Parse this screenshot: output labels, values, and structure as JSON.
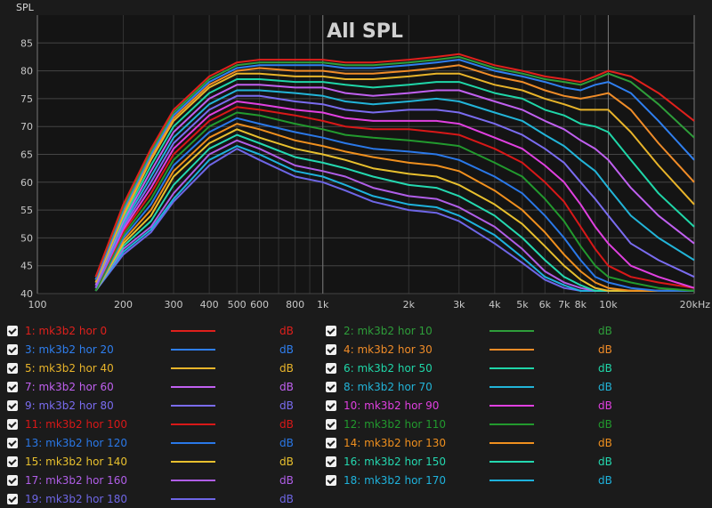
{
  "chart_data": {
    "type": "line",
    "title": "All SPL",
    "ylabel": "SPL",
    "x_unit_label": "20kHz",
    "xscale": "log",
    "xlim": [
      100,
      20000
    ],
    "ylim": [
      40,
      90
    ],
    "yticks": [
      40,
      45,
      50,
      55,
      60,
      65,
      70,
      75,
      80,
      85
    ],
    "xticks": [
      {
        "v": 100,
        "label": "100"
      },
      {
        "v": 200,
        "label": "200"
      },
      {
        "v": 300,
        "label": "300"
      },
      {
        "v": 400,
        "label": "400"
      },
      {
        "v": 500,
        "label": "500"
      },
      {
        "v": 600,
        "label": "600"
      },
      {
        "v": 800,
        "label": "800"
      },
      {
        "v": 1000,
        "label": "1k"
      },
      {
        "v": 2000,
        "label": "2k"
      },
      {
        "v": 3000,
        "label": "3k"
      },
      {
        "v": 4000,
        "label": "4k"
      },
      {
        "v": 5000,
        "label": "5k"
      },
      {
        "v": 6000,
        "label": "6k"
      },
      {
        "v": 7000,
        "label": "7k"
      },
      {
        "v": 8000,
        "label": "8k"
      },
      {
        "v": 10000,
        "label": "10k"
      },
      {
        "v": 20000,
        "label": "20kHz"
      }
    ],
    "grid": true,
    "x": [
      160,
      200,
      250,
      300,
      400,
      500,
      600,
      800,
      1000,
      1200,
      1500,
      2000,
      2500,
      3000,
      4000,
      5000,
      6000,
      7000,
      8000,
      9000,
      10000,
      12000,
      15000,
      20000
    ],
    "series": [
      {
        "name": "1: mk3b2 hor 0",
        "color": "#e0201c",
        "values": [
          43,
          56,
          66,
          73,
          79,
          81.5,
          82,
          82,
          82,
          81.5,
          81.5,
          82,
          82.5,
          83,
          81,
          80,
          79,
          78.5,
          78,
          79,
          80,
          79,
          76,
          71
        ]
      },
      {
        "name": "2: mk3b2 hor 10",
        "color": "#2e9e3a",
        "values": [
          43,
          55.5,
          65.5,
          72.5,
          78.5,
          81,
          81.5,
          81.5,
          81.5,
          81,
          81,
          81.5,
          82,
          82.5,
          80.5,
          79.5,
          78.5,
          78,
          77.5,
          78.5,
          79.5,
          78,
          74,
          68
        ]
      },
      {
        "name": "3: mk3b2 hor 20",
        "color": "#2f7ff0",
        "values": [
          42.5,
          55,
          65,
          72,
          78,
          80.5,
          81,
          81,
          81,
          80.5,
          80.5,
          81,
          81.5,
          82,
          80,
          79,
          78,
          77,
          76.5,
          77.5,
          78,
          76,
          71,
          64
        ]
      },
      {
        "name": "4: mk3b2 hor 30",
        "color": "#f08c28",
        "values": [
          42.5,
          54.5,
          64.5,
          71.5,
          77.5,
          80,
          80.5,
          80,
          80,
          79.5,
          79.5,
          80,
          80.5,
          81,
          79,
          78,
          76.5,
          75.5,
          75,
          75.5,
          76,
          73,
          67,
          60
        ]
      },
      {
        "name": "5: mk3b2 hor 40",
        "color": "#e8b42a",
        "values": [
          42,
          54,
          64,
          71,
          77,
          79.5,
          79.5,
          79,
          79,
          78.5,
          78.5,
          79,
          79.5,
          79.5,
          77.5,
          76.5,
          75,
          74,
          73,
          73,
          73,
          69,
          63,
          56
        ]
      },
      {
        "name": "6: mk3b2 hor 50",
        "color": "#1fd6a8",
        "values": [
          42,
          53.5,
          63,
          70,
          76,
          78.5,
          78.5,
          78,
          78,
          77.5,
          77,
          77.5,
          78,
          78,
          76,
          75,
          73,
          72,
          70.5,
          70,
          69,
          64,
          58,
          52
        ]
      },
      {
        "name": "7: mk3b2 hor 60",
        "color": "#c060f0",
        "values": [
          41.5,
          53,
          62,
          69,
          75,
          77.5,
          77.5,
          77,
          77,
          76,
          75.5,
          76,
          76.5,
          76.5,
          74.5,
          73,
          71,
          69.5,
          67.5,
          66,
          64,
          59,
          54,
          49
        ]
      },
      {
        "name": "8: mk3b2 hor 70",
        "color": "#22b4d8",
        "values": [
          41.5,
          52.5,
          61,
          68,
          74,
          76.5,
          76.5,
          76,
          75.5,
          74.5,
          74,
          74.5,
          75,
          74.5,
          72.5,
          71,
          68.5,
          66.5,
          64,
          62,
          59,
          54,
          50,
          46
        ]
      },
      {
        "name": "9: mk3b2 hor 80",
        "color": "#7a6cf0",
        "values": [
          41,
          52,
          60,
          67,
          73,
          75.5,
          75.5,
          74.5,
          74,
          73,
          72.5,
          73,
          73,
          72.5,
          70.5,
          68.5,
          66,
          63.5,
          60,
          57,
          54,
          49,
          46,
          43
        ]
      },
      {
        "name": "10: mk3b2 hor 90",
        "color": "#e040e0",
        "values": [
          41,
          51.5,
          59,
          66,
          72,
          74.5,
          74,
          73,
          72.5,
          71.5,
          71,
          71,
          71,
          70.5,
          68,
          66,
          63,
          60,
          56,
          52,
          49,
          45,
          43,
          41
        ]
      },
      {
        "name": "11: mk3b2 hor 100",
        "color": "#d81818",
        "values": [
          41,
          51,
          58,
          65,
          71,
          73.5,
          73,
          72,
          71,
          70,
          69.5,
          69.5,
          69,
          68.5,
          66,
          63.5,
          60,
          56.5,
          52,
          48,
          45,
          43,
          42,
          41
        ]
      },
      {
        "name": "12: mk3b2 hor 110",
        "color": "#229a2e",
        "values": [
          40.5,
          50.5,
          57,
          64,
          70,
          72.5,
          72,
          70.5,
          69.5,
          68.5,
          68,
          67.5,
          67,
          66.5,
          63.5,
          61,
          57,
          53,
          48.5,
          45,
          43,
          42,
          41,
          40.5
        ]
      },
      {
        "name": "13: mk3b2 hor 120",
        "color": "#2a78e8",
        "values": [
          40.5,
          50,
          56,
          63,
          69,
          71.5,
          70.5,
          69,
          68,
          67,
          66,
          65.5,
          65,
          64,
          61,
          58,
          54,
          50,
          46,
          43,
          42,
          41,
          40.5,
          40.5
        ]
      },
      {
        "name": "14: mk3b2 hor 130",
        "color": "#f0901e",
        "values": [
          40.5,
          49.5,
          55,
          62,
          68,
          70.5,
          69.5,
          67.5,
          66.5,
          65.5,
          64.5,
          63.5,
          63,
          62,
          58.5,
          55,
          51,
          47,
          44,
          42,
          41,
          40.5,
          40.5,
          40.5
        ]
      },
      {
        "name": "15: mk3b2 hor 140",
        "color": "#e8c02e",
        "values": [
          40.5,
          49,
          54,
          61,
          67,
          69.5,
          68,
          66,
          65,
          64,
          62.5,
          61.5,
          61,
          59.5,
          56,
          52.5,
          48.5,
          45,
          42.5,
          41,
          40.5,
          40.5,
          40.5,
          40.5
        ]
      },
      {
        "name": "16: mk3b2 hor 150",
        "color": "#24d8b0",
        "values": [
          40.5,
          48.5,
          53,
          59.5,
          66,
          68.5,
          67,
          64.5,
          63.5,
          62.5,
          61,
          59.5,
          59,
          57.5,
          54,
          50,
          46,
          43,
          41.5,
          40.5,
          40.5,
          40.5,
          40.5,
          40.5
        ]
      },
      {
        "name": "17: mk3b2 hor 160",
        "color": "#b05ee8",
        "values": [
          40.5,
          48,
          52,
          58,
          65,
          67.5,
          66,
          63,
          62,
          61,
          59,
          57.5,
          57,
          55.5,
          52,
          48,
          44,
          42,
          41,
          40.5,
          40.5,
          40.5,
          40.5,
          40.5
        ]
      },
      {
        "name": "18: mk3b2 hor 170",
        "color": "#1eb2dc",
        "values": [
          40.5,
          47.5,
          51.5,
          57,
          64,
          66.5,
          65,
          62,
          61,
          59.5,
          57.5,
          56,
          55.5,
          54,
          50.5,
          46.5,
          43,
          41.5,
          40.5,
          40.5,
          40.5,
          40.5,
          40.5,
          40.5
        ]
      },
      {
        "name": "19: mk3b2 hor 180",
        "color": "#6e66e6",
        "values": [
          40.5,
          47,
          51,
          56.5,
          63,
          66,
          64,
          61,
          60,
          58.5,
          56.5,
          55,
          54.5,
          53,
          49,
          45.5,
          42.5,
          41,
          40.5,
          40.5,
          40.5,
          40.5,
          40.5,
          40.5
        ]
      }
    ]
  },
  "legend": {
    "unit": "dB",
    "left": [
      {
        "name": "1: mk3b2 hor 0",
        "color": "#e0201c"
      },
      {
        "name": "3: mk3b2 hor 20",
        "color": "#2f7ff0"
      },
      {
        "name": "5: mk3b2 hor 40",
        "color": "#e8b42a"
      },
      {
        "name": "7: mk3b2 hor 60",
        "color": "#c060f0"
      },
      {
        "name": "9: mk3b2 hor 80",
        "color": "#7a6cf0"
      },
      {
        "name": "11: mk3b2 hor 100",
        "color": "#d81818"
      },
      {
        "name": "13: mk3b2 hor 120",
        "color": "#2a78e8"
      },
      {
        "name": "15: mk3b2 hor 140",
        "color": "#e8c02e"
      },
      {
        "name": "17: mk3b2 hor 160",
        "color": "#b05ee8"
      },
      {
        "name": "19: mk3b2 hor 180",
        "color": "#6e66e6"
      }
    ],
    "right": [
      {
        "name": "2: mk3b2 hor 10",
        "color": "#2e9e3a"
      },
      {
        "name": "4: mk3b2 hor 30",
        "color": "#f08c28"
      },
      {
        "name": "6: mk3b2 hor 50",
        "color": "#1fd6a8"
      },
      {
        "name": "8: mk3b2 hor 70",
        "color": "#22b4d8"
      },
      {
        "name": "10: mk3b2 hor 90",
        "color": "#e040e0"
      },
      {
        "name": "12: mk3b2 hor 110",
        "color": "#229a2e"
      },
      {
        "name": "14: mk3b2 hor 130",
        "color": "#f0901e"
      },
      {
        "name": "16: mk3b2 hor 150",
        "color": "#24d8b0"
      },
      {
        "name": "18: mk3b2 hor 170",
        "color": "#1eb2dc"
      }
    ]
  }
}
